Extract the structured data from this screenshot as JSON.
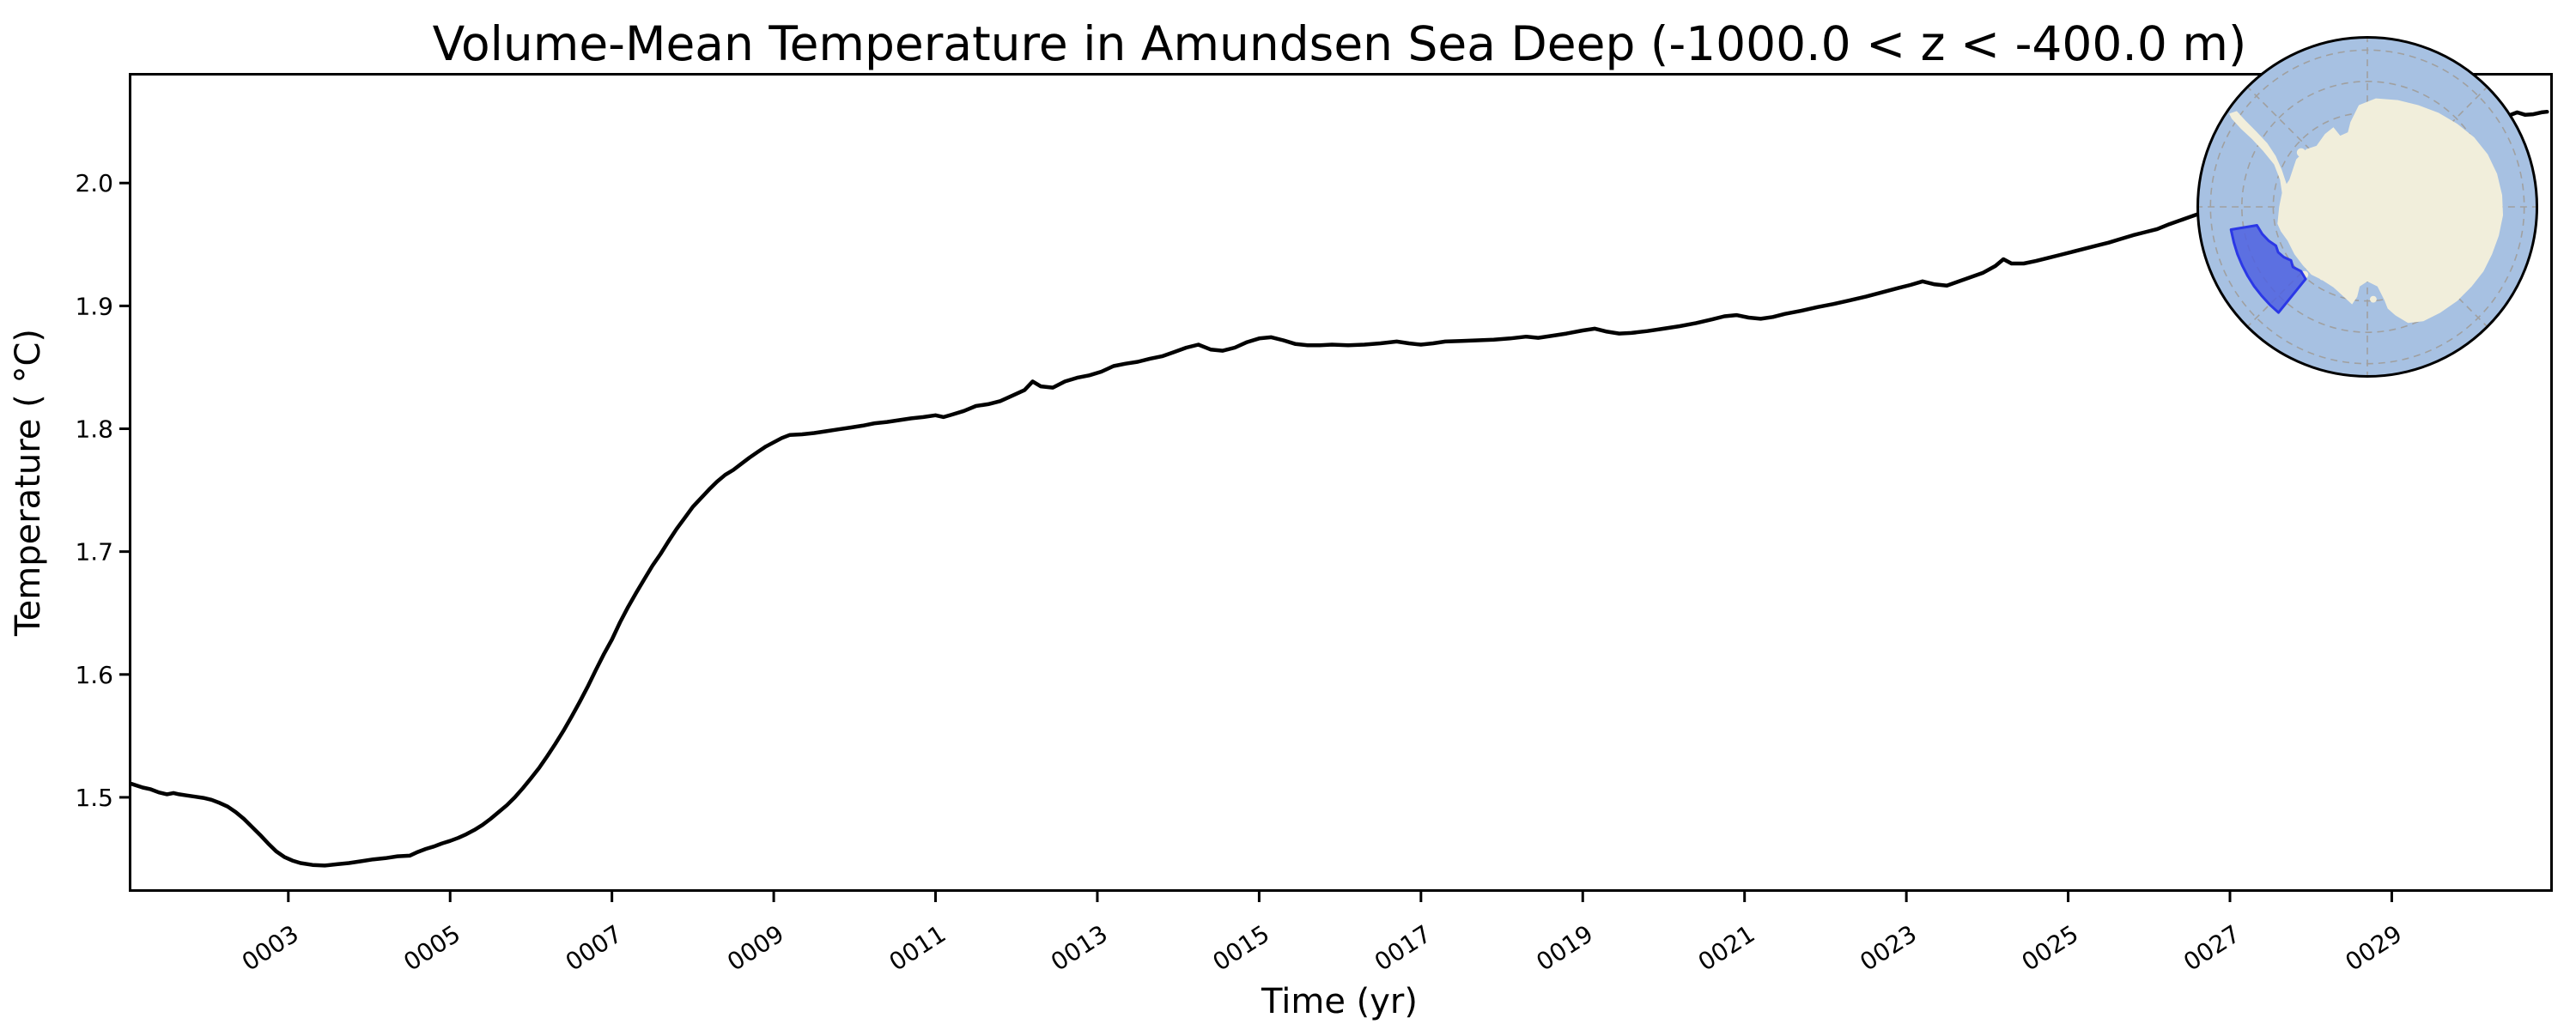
{
  "chart": {
    "title": "Volume-Mean Temperature in Amundsen Sea Deep (-1000.0 < z < -400.0 m)",
    "xlabel": "Time (yr)",
    "ylabel": "Temperature ( °C)"
  },
  "chart_data": {
    "type": "line",
    "title": "Volume-Mean Temperature in Amundsen Sea Deep (-1000.0 < z < -400.0 m)",
    "xlabel": "Time (yr)",
    "ylabel": "Temperature ( °C)",
    "xlim": [
      1.06,
      30.98
    ],
    "ylim": [
      1.4245,
      2.0875
    ],
    "grid": false,
    "legend": "none",
    "line_color": "#000000",
    "line_width": 4.5,
    "xticks": [
      {
        "v": 3,
        "label": "0003"
      },
      {
        "v": 5,
        "label": "0005"
      },
      {
        "v": 7,
        "label": "0007"
      },
      {
        "v": 9,
        "label": "0009"
      },
      {
        "v": 11,
        "label": "0011"
      },
      {
        "v": 13,
        "label": "0013"
      },
      {
        "v": 15,
        "label": "0015"
      },
      {
        "v": 17,
        "label": "0017"
      },
      {
        "v": 19,
        "label": "0019"
      },
      {
        "v": 21,
        "label": "0021"
      },
      {
        "v": 23,
        "label": "0023"
      },
      {
        "v": 25,
        "label": "0025"
      },
      {
        "v": 27,
        "label": "0027"
      },
      {
        "v": 29,
        "label": "0029"
      }
    ],
    "yticks": [
      {
        "v": 1.5,
        "label": "1.5"
      },
      {
        "v": 1.6,
        "label": "1.6"
      },
      {
        "v": 1.7,
        "label": "1.7"
      },
      {
        "v": 1.8,
        "label": "1.8"
      },
      {
        "v": 1.9,
        "label": "1.9"
      },
      {
        "v": 2.0,
        "label": "2.0"
      }
    ],
    "series": [
      {
        "name": "volume-mean temperature",
        "points": [
          [
            1.06,
            1.511
          ],
          [
            1.2,
            1.508
          ],
          [
            1.3,
            1.5065
          ],
          [
            1.4,
            1.504
          ],
          [
            1.5,
            1.5025
          ],
          [
            1.58,
            1.5035
          ],
          [
            1.65,
            1.5025
          ],
          [
            1.75,
            1.5015
          ],
          [
            1.85,
            1.5005
          ],
          [
            1.95,
            1.4995
          ],
          [
            2.05,
            1.498
          ],
          [
            2.15,
            1.4955
          ],
          [
            2.25,
            1.4925
          ],
          [
            2.35,
            1.488
          ],
          [
            2.45,
            1.4825
          ],
          [
            2.55,
            1.476
          ],
          [
            2.65,
            1.4695
          ],
          [
            2.75,
            1.4625
          ],
          [
            2.85,
            1.456
          ],
          [
            2.95,
            1.4515
          ],
          [
            3.05,
            1.4485
          ],
          [
            3.15,
            1.4465
          ],
          [
            3.3,
            1.445
          ],
          [
            3.45,
            1.4445
          ],
          [
            3.6,
            1.4455
          ],
          [
            3.75,
            1.4465
          ],
          [
            3.9,
            1.448
          ],
          [
            4.05,
            1.4495
          ],
          [
            4.2,
            1.4505
          ],
          [
            4.35,
            1.452
          ],
          [
            4.5,
            1.4525
          ],
          [
            4.6,
            1.4555
          ],
          [
            4.7,
            1.458
          ],
          [
            4.8,
            1.46
          ],
          [
            4.9,
            1.4625
          ],
          [
            5.0,
            1.4645
          ],
          [
            5.1,
            1.467
          ],
          [
            5.2,
            1.47
          ],
          [
            5.3,
            1.4735
          ],
          [
            5.4,
            1.4775
          ],
          [
            5.5,
            1.4825
          ],
          [
            5.6,
            1.488
          ],
          [
            5.7,
            1.4935
          ],
          [
            5.8,
            1.5
          ],
          [
            5.9,
            1.5075
          ],
          [
            6.0,
            1.5155
          ],
          [
            6.1,
            1.524
          ],
          [
            6.2,
            1.5335
          ],
          [
            6.3,
            1.5435
          ],
          [
            6.4,
            1.554
          ],
          [
            6.5,
            1.5655
          ],
          [
            6.6,
            1.5775
          ],
          [
            6.7,
            1.59
          ],
          [
            6.8,
            1.6035
          ],
          [
            6.9,
            1.6165
          ],
          [
            7.0,
            1.6285
          ],
          [
            7.1,
            1.6425
          ],
          [
            7.2,
            1.655
          ],
          [
            7.3,
            1.6665
          ],
          [
            7.4,
            1.6775
          ],
          [
            7.5,
            1.6885
          ],
          [
            7.6,
            1.698
          ],
          [
            7.7,
            1.7085
          ],
          [
            7.8,
            1.7185
          ],
          [
            7.9,
            1.7275
          ],
          [
            8.0,
            1.7365
          ],
          [
            8.1,
            1.7435
          ],
          [
            8.2,
            1.7505
          ],
          [
            8.3,
            1.757
          ],
          [
            8.4,
            1.7625
          ],
          [
            8.5,
            1.7665
          ],
          [
            8.6,
            1.7715
          ],
          [
            8.7,
            1.7765
          ],
          [
            8.8,
            1.781
          ],
          [
            8.9,
            1.7855
          ],
          [
            9.0,
            1.789
          ],
          [
            9.1,
            1.7925
          ],
          [
            9.2,
            1.795
          ],
          [
            9.35,
            1.7955
          ],
          [
            9.5,
            1.7965
          ],
          [
            9.65,
            1.798
          ],
          [
            9.8,
            1.7995
          ],
          [
            9.95,
            1.801
          ],
          [
            10.1,
            1.8025
          ],
          [
            10.25,
            1.8045
          ],
          [
            10.4,
            1.8055
          ],
          [
            10.55,
            1.807
          ],
          [
            10.7,
            1.8085
          ],
          [
            10.85,
            1.8095
          ],
          [
            11.0,
            1.811
          ],
          [
            11.1,
            1.8095
          ],
          [
            11.2,
            1.8115
          ],
          [
            11.35,
            1.8145
          ],
          [
            11.5,
            1.8185
          ],
          [
            11.65,
            1.82
          ],
          [
            11.8,
            1.8225
          ],
          [
            11.95,
            1.827
          ],
          [
            12.1,
            1.8315
          ],
          [
            12.2,
            1.8385
          ],
          [
            12.3,
            1.8345
          ],
          [
            12.45,
            1.8335
          ],
          [
            12.6,
            1.8385
          ],
          [
            12.75,
            1.8415
          ],
          [
            12.9,
            1.8435
          ],
          [
            13.05,
            1.8465
          ],
          [
            13.2,
            1.851
          ],
          [
            13.35,
            1.853
          ],
          [
            13.5,
            1.8545
          ],
          [
            13.65,
            1.857
          ],
          [
            13.8,
            1.859
          ],
          [
            13.95,
            1.8625
          ],
          [
            14.1,
            1.866
          ],
          [
            14.25,
            1.8685
          ],
          [
            14.4,
            1.8645
          ],
          [
            14.55,
            1.8635
          ],
          [
            14.7,
            1.866
          ],
          [
            14.85,
            1.8705
          ],
          [
            15.0,
            1.8735
          ],
          [
            15.15,
            1.8745
          ],
          [
            15.3,
            1.872
          ],
          [
            15.45,
            1.869
          ],
          [
            15.6,
            1.868
          ],
          [
            15.75,
            1.868
          ],
          [
            15.9,
            1.8685
          ],
          [
            16.1,
            1.868
          ],
          [
            16.3,
            1.8685
          ],
          [
            16.5,
            1.8695
          ],
          [
            16.7,
            1.871
          ],
          [
            16.85,
            1.8695
          ],
          [
            17.0,
            1.8685
          ],
          [
            17.15,
            1.8695
          ],
          [
            17.3,
            1.871
          ],
          [
            17.5,
            1.8715
          ],
          [
            17.7,
            1.872
          ],
          [
            17.9,
            1.8725
          ],
          [
            18.1,
            1.8735
          ],
          [
            18.3,
            1.875
          ],
          [
            18.45,
            1.874
          ],
          [
            18.6,
            1.8755
          ],
          [
            18.8,
            1.8775
          ],
          [
            19.0,
            1.88
          ],
          [
            19.15,
            1.8815
          ],
          [
            19.3,
            1.879
          ],
          [
            19.45,
            1.8775
          ],
          [
            19.6,
            1.878
          ],
          [
            19.8,
            1.8795
          ],
          [
            20.0,
            1.8815
          ],
          [
            20.2,
            1.8835
          ],
          [
            20.4,
            1.886
          ],
          [
            20.6,
            1.889
          ],
          [
            20.75,
            1.8915
          ],
          [
            20.9,
            1.8925
          ],
          [
            21.05,
            1.8905
          ],
          [
            21.2,
            1.8895
          ],
          [
            21.35,
            1.891
          ],
          [
            21.5,
            1.8935
          ],
          [
            21.7,
            1.896
          ],
          [
            21.9,
            1.899
          ],
          [
            22.1,
            1.9015
          ],
          [
            22.3,
            1.9045
          ],
          [
            22.5,
            1.9075
          ],
          [
            22.7,
            1.911
          ],
          [
            22.9,
            1.9145
          ],
          [
            23.05,
            1.917
          ],
          [
            23.2,
            1.92
          ],
          [
            23.35,
            1.9175
          ],
          [
            23.5,
            1.9165
          ],
          [
            23.65,
            1.92
          ],
          [
            23.8,
            1.9235
          ],
          [
            23.95,
            1.927
          ],
          [
            24.1,
            1.9325
          ],
          [
            24.2,
            1.938
          ],
          [
            24.3,
            1.9345
          ],
          [
            24.45,
            1.9345
          ],
          [
            24.6,
            1.9365
          ],
          [
            24.75,
            1.939
          ],
          [
            24.9,
            1.9415
          ],
          [
            25.05,
            1.944
          ],
          [
            25.2,
            1.9465
          ],
          [
            25.35,
            1.949
          ],
          [
            25.5,
            1.9515
          ],
          [
            25.65,
            1.9545
          ],
          [
            25.8,
            1.9575
          ],
          [
            25.95,
            1.96
          ],
          [
            26.1,
            1.9625
          ],
          [
            26.25,
            1.9665
          ],
          [
            26.4,
            1.97
          ],
          [
            26.55,
            1.9735
          ],
          [
            26.7,
            1.977
          ],
          [
            26.85,
            1.9805
          ],
          [
            27.0,
            1.9845
          ],
          [
            27.2,
            1.989
          ],
          [
            27.4,
            1.9935
          ],
          [
            27.6,
            1.998
          ],
          [
            27.8,
            2.0025
          ],
          [
            28.0,
            2.007
          ],
          [
            28.2,
            2.0115
          ],
          [
            28.4,
            2.016
          ],
          [
            28.6,
            2.0205
          ],
          [
            28.8,
            2.025
          ],
          [
            29.0,
            2.029
          ],
          [
            29.2,
            2.033
          ],
          [
            29.4,
            2.037
          ],
          [
            29.6,
            2.0405
          ],
          [
            29.8,
            2.0445
          ],
          [
            30.0,
            2.048
          ],
          [
            30.15,
            2.0505
          ],
          [
            30.3,
            2.0525
          ],
          [
            30.45,
            2.055
          ],
          [
            30.55,
            2.0575
          ],
          [
            30.65,
            2.0555
          ],
          [
            30.75,
            2.056
          ],
          [
            30.85,
            2.0575
          ],
          [
            30.92,
            2.058
          ]
        ]
      }
    ]
  },
  "inset_map": {
    "description": "South polar stereographic map of Antarctica with highlighted Amundsen Sea sector",
    "ocean_color": "#a7c1e2",
    "land_color": "#f1eedb",
    "graticule_color": "#a0a0a0",
    "highlight_fill": "#4f62e0",
    "highlight_stroke": "#2b38e6",
    "outline_color": "#000000"
  }
}
